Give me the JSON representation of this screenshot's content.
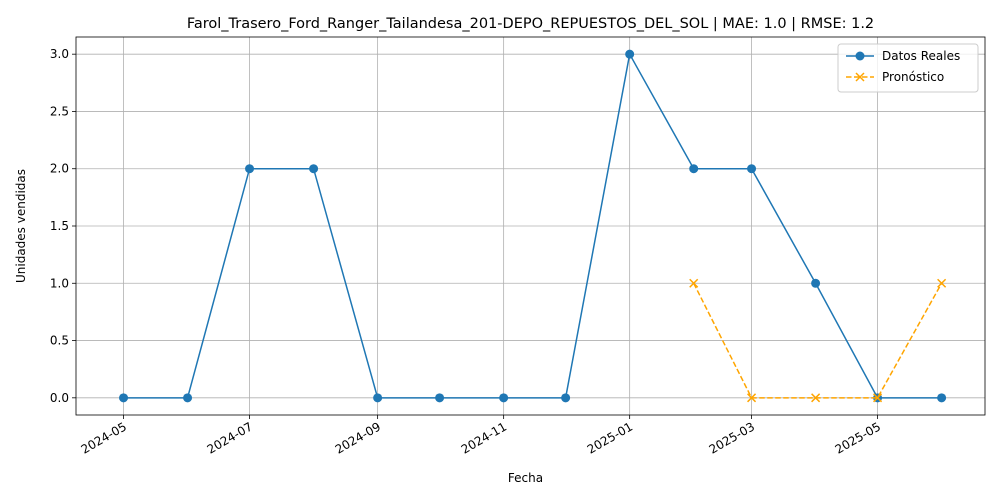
{
  "chart_data": {
    "type": "line",
    "title": "Farol_Trasero_Ford_Ranger_Tailandesa_201-DEPO_REPUESTOS_DEL_SOL | MAE: 1.0 | RMSE: 1.2",
    "xlabel": "Fecha",
    "ylabel": "Unidades vendidas",
    "ylim": [
      -0.15,
      3.15
    ],
    "xlim": [
      "2024-04-08",
      "2025-06-22"
    ],
    "grid": true,
    "legend_position": "top-right",
    "x_ticks": [
      "2024-05",
      "2024-07",
      "2024-09",
      "2024-11",
      "2025-01",
      "2025-03",
      "2025-05"
    ],
    "y_ticks": [
      "0.0",
      "0.5",
      "1.0",
      "1.5",
      "2.0",
      "2.5",
      "3.0"
    ],
    "series": [
      {
        "name": "Datos Reales",
        "color": "#1f77b4",
        "marker": "circle",
        "line_style": "solid",
        "x": [
          "2024-05-01",
          "2024-06-01",
          "2024-07-01",
          "2024-08-01",
          "2024-09-01",
          "2024-10-01",
          "2024-11-01",
          "2024-12-01",
          "2025-01-01",
          "2025-02-01",
          "2025-03-01",
          "2025-04-01",
          "2025-05-01",
          "2025-06-01"
        ],
        "values": [
          0,
          0,
          2,
          2,
          0,
          0,
          0,
          0,
          3,
          2,
          2,
          1,
          0,
          0
        ]
      },
      {
        "name": "Pronóstico",
        "color": "#ffa500",
        "marker": "x",
        "line_style": "dashed",
        "x": [
          "2025-02-01",
          "2025-03-01",
          "2025-04-01",
          "2025-05-01",
          "2025-06-01"
        ],
        "values": [
          1,
          0,
          0,
          0,
          1
        ]
      }
    ]
  }
}
